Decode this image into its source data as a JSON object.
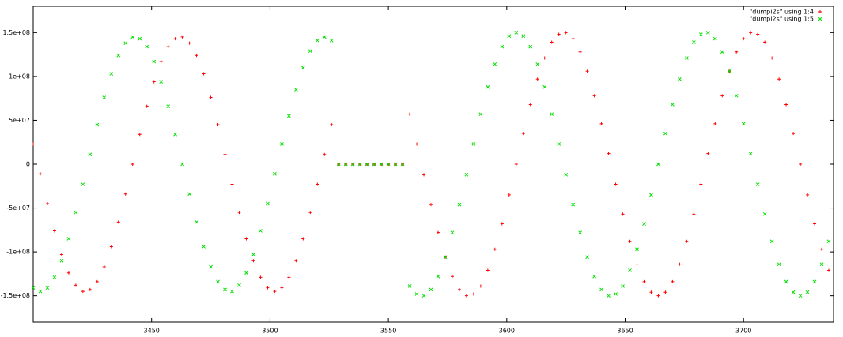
{
  "chart_data": {
    "type": "scatter",
    "x": [
      3400,
      3403,
      3406,
      3409,
      3412,
      3415,
      3418,
      3421,
      3424,
      3427,
      3430,
      3433,
      3436,
      3439,
      3442,
      3445,
      3448,
      3451,
      3454,
      3457,
      3460,
      3463,
      3466,
      3469,
      3472,
      3475,
      3478,
      3481,
      3484,
      3487,
      3490,
      3493,
      3496,
      3499,
      3502,
      3505,
      3508,
      3511,
      3514,
      3517,
      3520,
      3523,
      3526,
      3529,
      3532,
      3535,
      3538,
      3541,
      3544,
      3547,
      3550,
      3553,
      3556,
      3559,
      3562,
      3565,
      3568,
      3571,
      3574,
      3577,
      3580,
      3583,
      3586,
      3589,
      3592,
      3595,
      3598,
      3601,
      3604,
      3607,
      3610,
      3613,
      3616,
      3619,
      3622,
      3625,
      3628,
      3631,
      3634,
      3637,
      3640,
      3643,
      3646,
      3649,
      3652,
      3655,
      3658,
      3661,
      3664,
      3667,
      3670,
      3673,
      3676,
      3679,
      3682,
      3685,
      3688,
      3691,
      3694,
      3697,
      3700,
      3703,
      3706,
      3709,
      3712,
      3715,
      3718,
      3721,
      3724,
      3727,
      3730,
      3733,
      3736
    ],
    "series": [
      {
        "name": "\"dumpi2s\" using 1:4",
        "color": "#ff0000",
        "marker": "plus",
        "values": [
          23000000.0,
          -11000000.0,
          -45000000.0,
          -76000000.0,
          -103000000.0,
          -124000000.0,
          -138000000.0,
          -145000000.0,
          -143000000.0,
          -134000000.0,
          -117000000.0,
          -94000000.0,
          -66000000.0,
          -34000000.0,
          0,
          34000000.0,
          66000000.0,
          94000000.0,
          117000000.0,
          134000000.0,
          143000000.0,
          145000000.0,
          138000000.0,
          124000000.0,
          103000000.0,
          76000000.0,
          45000000.0,
          11000000.0,
          -23000000.0,
          -55000000.0,
          -85000000.0,
          -110000000.0,
          -129000000.0,
          -141000000.0,
          -145000000.0,
          -141000000.0,
          -129000000.0,
          -110000000.0,
          -85000000.0,
          -55000000.0,
          -23000000.0,
          11000000.0,
          45000000.0,
          0,
          0,
          0,
          0,
          0,
          0,
          0,
          0,
          0,
          0,
          57000000.0,
          23000000.0,
          -12000000.0,
          -46000000.0,
          -78000000.0,
          -106000000.0,
          -128000000.0,
          -143000000.0,
          -150000000.0,
          -148000000.0,
          -139000000.0,
          -121000000.0,
          -97000000.0,
          -68000000.0,
          -35000000.0,
          0,
          35000000.0,
          68000000.0,
          97000000.0,
          121000000.0,
          139000000.0,
          148000000.0,
          150000000.0,
          143000000.0,
          128000000.0,
          106000000.0,
          78000000.0,
          46000000.0,
          12000000.0,
          -23000000.0,
          -57000000.0,
          -88000000.0,
          -114000000.0,
          -134000000.0,
          -146000000.0,
          -150000000.0,
          -146000000.0,
          -134000000.0,
          -114000000.0,
          -88000000.0,
          -57000000.0,
          -23000000.0,
          12000000.0,
          46000000.0,
          78000000.0,
          106000000.0,
          128000000.0,
          143000000.0,
          150000000.0,
          148000000.0,
          139000000.0,
          121000000.0,
          97000000.0,
          68000000.0,
          35000000.0,
          0,
          -35000000.0,
          -68000000.0,
          -97000000.0,
          -121000000.0
        ]
      },
      {
        "name": "\"dumpi2s\" using 1:5",
        "color": "#00e000",
        "marker": "cross",
        "values": [
          -141000000.0,
          -145000000.0,
          -141000000.0,
          -129000000.0,
          -110000000.0,
          -85000000.0,
          -55000000.0,
          -23000000.0,
          11000000.0,
          45000000.0,
          76000000.0,
          103000000.0,
          124000000.0,
          138000000.0,
          145000000.0,
          143000000.0,
          134000000.0,
          117000000.0,
          94000000.0,
          66000000.0,
          34000000.0,
          0,
          -34000000.0,
          -66000000.0,
          -94000000.0,
          -117000000.0,
          -134000000.0,
          -143000000.0,
          -145000000.0,
          -138000000.0,
          -124000000.0,
          -103000000.0,
          -76000000.0,
          -45000000.0,
          -11000000.0,
          23000000.0,
          55000000.0,
          85000000.0,
          110000000.0,
          129000000.0,
          141000000.0,
          145000000.0,
          141000000.0,
          0,
          0,
          0,
          0,
          0,
          0,
          0,
          0,
          0,
          0,
          -139000000.0,
          -148000000.0,
          -150000000.0,
          -143000000.0,
          -128000000.0,
          -106000000.0,
          -78000000.0,
          -46000000.0,
          -12000000.0,
          23000000.0,
          57000000.0,
          88000000.0,
          114000000.0,
          134000000.0,
          146000000.0,
          150000000.0,
          146000000.0,
          134000000.0,
          114000000.0,
          88000000.0,
          57000000.0,
          23000000.0,
          -12000000.0,
          -46000000.0,
          -78000000.0,
          -106000000.0,
          -128000000.0,
          -143000000.0,
          -150000000.0,
          -148000000.0,
          -139000000.0,
          -121000000.0,
          -97000000.0,
          -68000000.0,
          -35000000.0,
          0,
          35000000.0,
          68000000.0,
          97000000.0,
          121000000.0,
          139000000.0,
          148000000.0,
          150000000.0,
          143000000.0,
          128000000.0,
          106000000.0,
          78000000.0,
          46000000.0,
          12000000.0,
          -23000000.0,
          -57000000.0,
          -88000000.0,
          -114000000.0,
          -134000000.0,
          -146000000.0,
          -150000000.0,
          -146000000.0,
          -134000000.0,
          -114000000.0,
          -88000000.0
        ]
      }
    ],
    "xlim": [
      3400,
      3738
    ],
    "xticks": [
      3450,
      3500,
      3550,
      3600,
      3650,
      3700
    ],
    "ylim": [
      -180000000,
      180000000
    ],
    "yticks": [
      {
        "value": -150000000,
        "label": "-1.5e+08"
      },
      {
        "value": -100000000,
        "label": "-1e+08"
      },
      {
        "value": -50000000,
        "label": "-5e+07"
      },
      0,
      {
        "value": 50000000,
        "label": "5e+07"
      },
      {
        "value": 100000000,
        "label": "1e+08"
      },
      {
        "value": 150000000,
        "label": "1.5e+08"
      }
    ],
    "grid": false,
    "legend": "top-right"
  }
}
